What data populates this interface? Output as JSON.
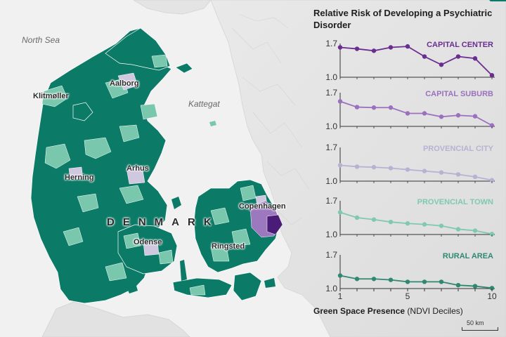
{
  "map": {
    "sea_labels": {
      "north_sea": "North Sea",
      "kattegat": "Kattegat"
    },
    "country": "DENMARK",
    "cities": [
      "Aalborg",
      "Klitmøller",
      "Arhus",
      "Herning",
      "Copenhagen",
      "Odense",
      "Ringsted"
    ],
    "scale_bar": "50 km",
    "colors": {
      "rural": "#0b7a67",
      "town": "#79c7ad",
      "city": "#cfc8df",
      "suburb": "#9c78bf",
      "center": "#4b1b78",
      "land_other": "#ffffff",
      "sea": "#f0f0f0"
    }
  },
  "chart_data": {
    "type": "line",
    "title": "Relative Risk of Developing a Psychiatric Disorder",
    "xlabel_bold": "Green Space Presence",
    "xlabel_rest": " (NDVI Deciles)",
    "x": [
      1,
      2,
      3,
      4,
      5,
      6,
      7,
      8,
      9,
      10
    ],
    "xticks": [
      1,
      5,
      10
    ],
    "yticks": [
      1.0,
      1.7
    ],
    "ylim": [
      1.0,
      1.7
    ],
    "series": [
      {
        "name": "CAPITAL CENTER",
        "color": "#6a2d91",
        "values": [
          1.62,
          1.59,
          1.55,
          1.62,
          1.64,
          1.43,
          1.26,
          1.43,
          1.39,
          1.04
        ]
      },
      {
        "name": "CAPITAL SUBURB",
        "color": "#9b71bf",
        "values": [
          1.52,
          1.4,
          1.39,
          1.39,
          1.27,
          1.27,
          1.2,
          1.23,
          1.21,
          1.02
        ]
      },
      {
        "name": "PROVENCIAL CITY",
        "color": "#b9b1d4",
        "values": [
          1.33,
          1.3,
          1.29,
          1.27,
          1.24,
          1.21,
          1.18,
          1.14,
          1.09,
          1.02
        ]
      },
      {
        "name": "PROVENCIAL TOWN",
        "color": "#7fc9b2",
        "values": [
          1.46,
          1.35,
          1.31,
          1.26,
          1.23,
          1.21,
          1.18,
          1.11,
          1.08,
          1.01
        ]
      },
      {
        "name": "RURAL AREA",
        "color": "#2f8870",
        "values": [
          1.27,
          1.2,
          1.2,
          1.18,
          1.14,
          1.14,
          1.14,
          1.07,
          1.05,
          1.01
        ]
      }
    ]
  }
}
